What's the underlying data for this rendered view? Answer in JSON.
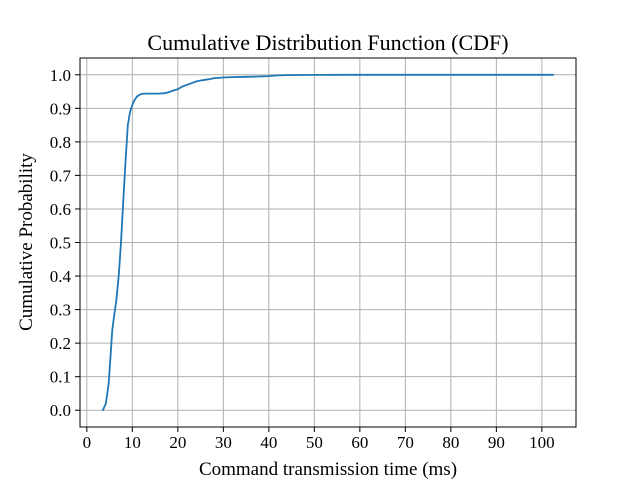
{
  "chart_data": {
    "type": "line",
    "title": "Cumulative Distribution Function (CDF)",
    "xlabel": "Command transmission time (ms)",
    "ylabel": "Cumulative Probability",
    "xlim": [
      -1.5,
      107.5
    ],
    "ylim": [
      -0.05,
      1.05
    ],
    "xticks": [
      0,
      10,
      20,
      30,
      40,
      50,
      60,
      70,
      80,
      90,
      100
    ],
    "yticks": [
      0.0,
      0.1,
      0.2,
      0.3,
      0.4,
      0.5,
      0.6,
      0.7,
      0.8,
      0.9,
      1.0
    ],
    "ytick_labels": [
      "0.0",
      "0.1",
      "0.2",
      "0.3",
      "0.4",
      "0.5",
      "0.6",
      "0.7",
      "0.8",
      "0.9",
      "1.0"
    ],
    "grid": true,
    "series": [
      {
        "color": "#1f77b4",
        "x": [
          3.5,
          4.2,
          4.8,
          5.2,
          5.6,
          6.0,
          6.5,
          7.0,
          7.5,
          8.0,
          8.5,
          9.0,
          9.5,
          10.0,
          10.5,
          11.0,
          11.5,
          12.0,
          13.0,
          14.0,
          15.0,
          16.0,
          17.0,
          18.0,
          19.0,
          20.0,
          21.0,
          22.0,
          23.0,
          24.0,
          25.0,
          26.0,
          27.0,
          28.0,
          30.0,
          32.0,
          35.0,
          38.0,
          40.0,
          42.0,
          44.0,
          50.0,
          60.0,
          70.0,
          80.0,
          90.0,
          100.0,
          102.5
        ],
        "y": [
          0.0,
          0.02,
          0.08,
          0.16,
          0.24,
          0.28,
          0.33,
          0.4,
          0.5,
          0.62,
          0.74,
          0.85,
          0.89,
          0.91,
          0.925,
          0.935,
          0.94,
          0.943,
          0.944,
          0.944,
          0.944,
          0.944,
          0.945,
          0.948,
          0.953,
          0.957,
          0.965,
          0.97,
          0.975,
          0.98,
          0.983,
          0.985,
          0.987,
          0.99,
          0.992,
          0.993,
          0.994,
          0.995,
          0.996,
          0.998,
          0.999,
          0.9995,
          1.0,
          1.0,
          1.0,
          1.0,
          1.0,
          1.0
        ]
      }
    ]
  }
}
